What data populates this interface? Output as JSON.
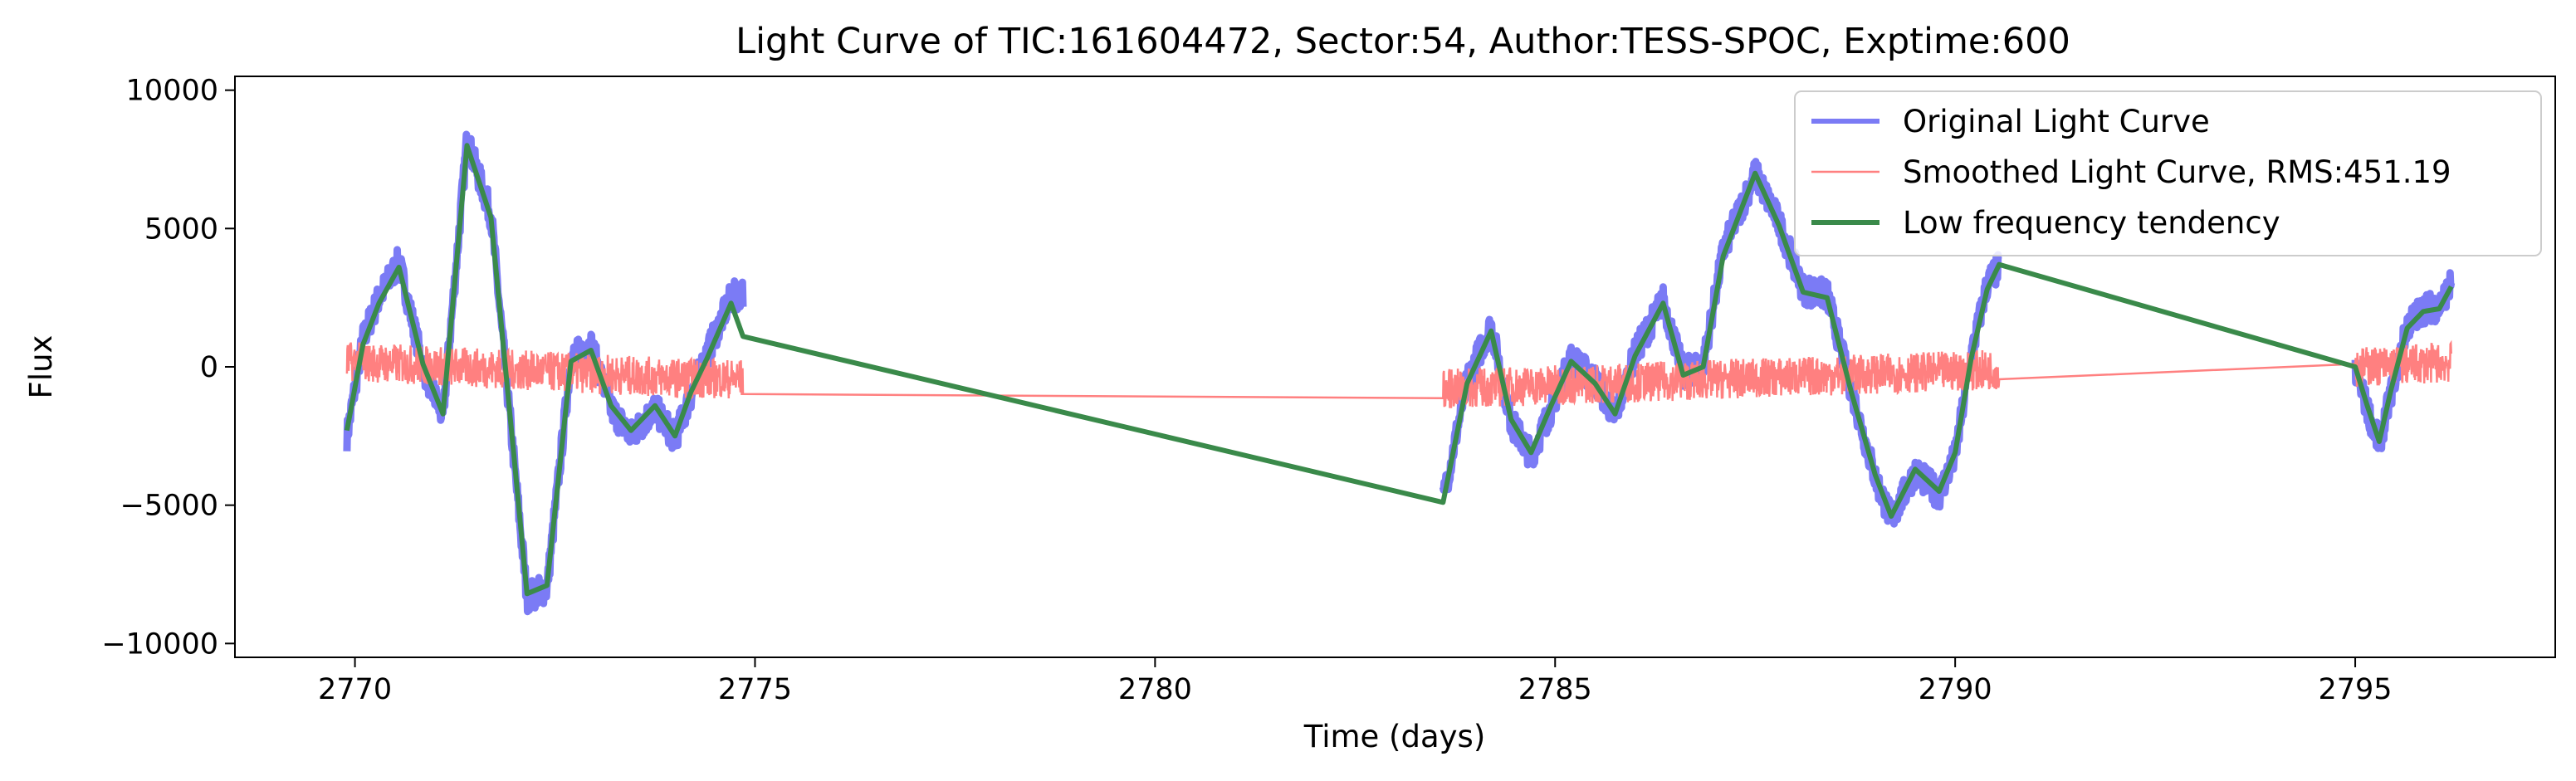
{
  "chart_data": {
    "type": "line",
    "title": "Light Curve of TIC:161604472, Sector:54, Author:TESS-SPOC, Exptime:600",
    "xlabel": "Time (days)",
    "ylabel": "Flux",
    "xlim": [
      2768.5,
      2797.5
    ],
    "ylim": [
      -10500,
      10500
    ],
    "x_ticks": [
      2770,
      2775,
      2780,
      2785,
      2790,
      2795
    ],
    "x_tick_labels": [
      "2770",
      "2775",
      "2780",
      "2785",
      "2790",
      "2795"
    ],
    "y_ticks": [
      10000,
      5000,
      0,
      -5000,
      -10000
    ],
    "y_tick_labels": [
      "10000",
      "5000",
      "0",
      "−5000",
      "−10000"
    ],
    "grid": false,
    "legend_position": "top-right",
    "segments": [
      [
        2769.9,
        2774.85
      ],
      [
        2783.6,
        2790.55
      ],
      [
        2795.0,
        2796.2
      ]
    ],
    "series": [
      {
        "name": "Original Light Curve",
        "color": "#7b7bf5",
        "style": "noisy",
        "x": [
          2769.9,
          2770.1,
          2770.3,
          2770.55,
          2770.85,
          2771.1,
          2771.4,
          2771.7,
          2772.0,
          2772.15,
          2772.4,
          2772.7,
          2772.95,
          2773.2,
          2773.45,
          2773.75,
          2774.0,
          2774.2,
          2774.4,
          2774.55,
          2774.7,
          2774.85,
          2783.6,
          2783.9,
          2784.2,
          2784.45,
          2784.7,
          2784.95,
          2785.2,
          2785.5,
          2785.75,
          2786.0,
          2786.35,
          2786.6,
          2786.85,
          2787.1,
          2787.5,
          2787.8,
          2788.1,
          2788.4,
          2788.7,
          2789.0,
          2789.2,
          2789.5,
          2789.8,
          2790.0,
          2790.2,
          2790.4,
          2790.55,
          2795.0,
          2795.15,
          2795.3,
          2795.45,
          2795.65,
          2795.85,
          2796.05,
          2796.2
        ],
        "y": [
          -2500,
          1000,
          2500,
          3800,
          0,
          -1800,
          8200,
          5500,
          -3800,
          -8300,
          -8000,
          300,
          800,
          -1500,
          -2500,
          -1500,
          -2600,
          -1000,
          500,
          1500,
          2500,
          2700,
          -4800,
          -500,
          1500,
          -2000,
          -3200,
          -1500,
          300,
          -500,
          -1800,
          500,
          2400,
          -200,
          100,
          4200,
          7000,
          5200,
          2800,
          2600,
          -800,
          -4000,
          -5500,
          -3800,
          -4600,
          -3200,
          400,
          3000,
          3600,
          -100,
          -1500,
          -2800,
          -900,
          1500,
          2100,
          2200,
          3000
        ]
      },
      {
        "name": "Smoothed Light Curve, RMS:451.19",
        "color": "#ff8080",
        "style": "noisy",
        "x": [
          2769.9,
          2774.0,
          2783.6,
          2790.55,
          2795.0,
          2796.2
        ],
        "y": [
          200,
          -400,
          -800,
          -100,
          0,
          150
        ],
        "noise": 451.19
      },
      {
        "name": "Low frequency tendency",
        "color": "#3a8a4a",
        "style": "smooth",
        "x": [
          2769.9,
          2770.1,
          2770.3,
          2770.55,
          2770.85,
          2771.1,
          2771.4,
          2771.7,
          2772.0,
          2772.15,
          2772.4,
          2772.7,
          2772.95,
          2773.2,
          2773.45,
          2773.75,
          2774.0,
          2774.2,
          2774.4,
          2774.55,
          2774.7,
          2774.85,
          2783.6,
          2783.9,
          2784.2,
          2784.45,
          2784.7,
          2784.95,
          2785.2,
          2785.5,
          2785.75,
          2786.0,
          2786.35,
          2786.6,
          2786.85,
          2787.1,
          2787.5,
          2787.8,
          2788.1,
          2788.4,
          2788.7,
          2789.0,
          2789.2,
          2789.5,
          2789.8,
          2790.0,
          2790.2,
          2790.4,
          2790.55,
          2795.0,
          2795.15,
          2795.3,
          2795.45,
          2795.65,
          2795.85,
          2796.05,
          2796.2
        ],
        "y": [
          -2300,
          800,
          2300,
          3600,
          100,
          -1700,
          8000,
          5400,
          -3600,
          -8200,
          -7900,
          200,
          600,
          -1400,
          -2300,
          -1400,
          -2500,
          -900,
          300,
          1300,
          2300,
          1100,
          -4900,
          -600,
          1300,
          -1900,
          -3100,
          -1400,
          200,
          -600,
          -1700,
          400,
          2300,
          -300,
          0,
          4000,
          7000,
          5100,
          2700,
          2500,
          -900,
          -3900,
          -5400,
          -3700,
          -4500,
          -3100,
          300,
          2800,
          3700,
          0,
          -1400,
          -2700,
          -800,
          1400,
          2000,
          2100,
          2900
        ]
      }
    ]
  }
}
